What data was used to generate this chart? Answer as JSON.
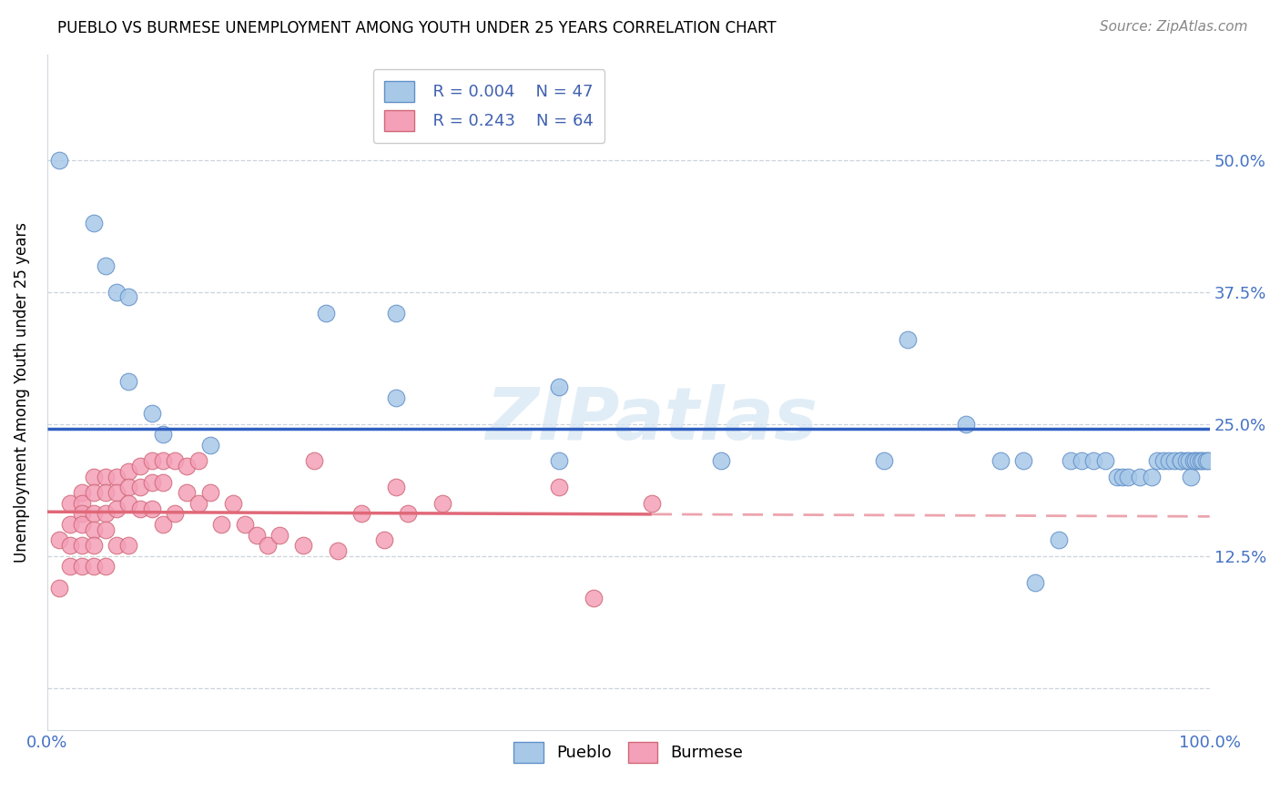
{
  "title": "PUEBLO VS BURMESE UNEMPLOYMENT AMONG YOUTH UNDER 25 YEARS CORRELATION CHART",
  "source": "Source: ZipAtlas.com",
  "xlabel": "",
  "ylabel": "Unemployment Among Youth under 25 years",
  "xlim": [
    0,
    1.0
  ],
  "ylim": [
    -0.04,
    0.6
  ],
  "yticks": [
    0.0,
    0.125,
    0.25,
    0.375,
    0.5
  ],
  "ytick_labels": [
    "",
    "12.5%",
    "25.0%",
    "37.5%",
    "50.0%"
  ],
  "xticks": [
    0.0,
    0.25,
    0.5,
    0.75,
    1.0
  ],
  "xtick_labels": [
    "0.0%",
    "",
    "",
    "",
    "100.0%"
  ],
  "legend_pueblo_R": "R = 0.004",
  "legend_pueblo_N": "N = 47",
  "legend_burmese_R": "R = 0.243",
  "legend_burmese_N": "N = 64",
  "pueblo_color": "#a8c8e8",
  "burmese_color": "#f4a0b8",
  "pueblo_line_color": "#3060c0",
  "burmese_line_color": "#e06878",
  "watermark": "ZIPatlas",
  "pueblo_x": [
    0.01,
    0.04,
    0.05,
    0.06,
    0.07,
    0.07,
    0.09,
    0.1,
    0.14,
    0.24,
    0.3,
    0.3,
    0.44,
    0.44,
    0.58,
    0.72,
    0.74,
    0.79,
    0.82,
    0.84,
    0.85,
    0.87,
    0.88,
    0.89,
    0.9,
    0.91,
    0.92,
    0.925,
    0.93,
    0.94,
    0.95,
    0.955,
    0.96,
    0.965,
    0.97,
    0.975,
    0.975,
    0.98,
    0.982,
    0.984,
    0.986,
    0.988,
    0.99,
    0.992,
    0.994,
    0.997,
    0.999
  ],
  "pueblo_y": [
    0.5,
    0.44,
    0.4,
    0.375,
    0.37,
    0.29,
    0.26,
    0.24,
    0.23,
    0.355,
    0.355,
    0.275,
    0.215,
    0.285,
    0.215,
    0.215,
    0.33,
    0.25,
    0.215,
    0.215,
    0.1,
    0.14,
    0.215,
    0.215,
    0.215,
    0.215,
    0.2,
    0.2,
    0.2,
    0.2,
    0.2,
    0.215,
    0.215,
    0.215,
    0.215,
    0.215,
    0.215,
    0.215,
    0.215,
    0.2,
    0.215,
    0.215,
    0.215,
    0.215,
    0.215,
    0.215,
    0.215
  ],
  "burmese_x": [
    0.01,
    0.01,
    0.02,
    0.02,
    0.02,
    0.02,
    0.03,
    0.03,
    0.03,
    0.03,
    0.03,
    0.03,
    0.04,
    0.04,
    0.04,
    0.04,
    0.04,
    0.04,
    0.05,
    0.05,
    0.05,
    0.05,
    0.05,
    0.06,
    0.06,
    0.06,
    0.06,
    0.07,
    0.07,
    0.07,
    0.07,
    0.08,
    0.08,
    0.08,
    0.09,
    0.09,
    0.09,
    0.1,
    0.1,
    0.1,
    0.11,
    0.11,
    0.12,
    0.12,
    0.13,
    0.13,
    0.14,
    0.15,
    0.16,
    0.17,
    0.18,
    0.19,
    0.2,
    0.22,
    0.23,
    0.25,
    0.27,
    0.29,
    0.3,
    0.31,
    0.34,
    0.44,
    0.47,
    0.52
  ],
  "burmese_y": [
    0.14,
    0.095,
    0.175,
    0.155,
    0.135,
    0.115,
    0.185,
    0.175,
    0.165,
    0.155,
    0.135,
    0.115,
    0.2,
    0.185,
    0.165,
    0.15,
    0.135,
    0.115,
    0.2,
    0.185,
    0.165,
    0.15,
    0.115,
    0.2,
    0.185,
    0.17,
    0.135,
    0.205,
    0.19,
    0.175,
    0.135,
    0.21,
    0.19,
    0.17,
    0.215,
    0.195,
    0.17,
    0.215,
    0.195,
    0.155,
    0.215,
    0.165,
    0.21,
    0.185,
    0.215,
    0.175,
    0.185,
    0.155,
    0.175,
    0.155,
    0.145,
    0.135,
    0.145,
    0.135,
    0.215,
    0.13,
    0.165,
    0.14,
    0.19,
    0.165,
    0.175,
    0.19,
    0.085,
    0.175
  ]
}
